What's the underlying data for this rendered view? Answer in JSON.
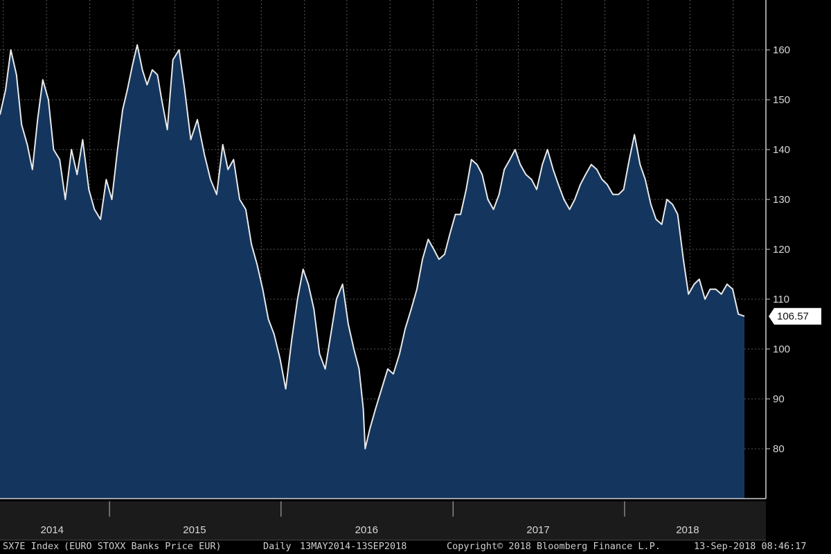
{
  "chart_data": {
    "type": "area",
    "ticker": "SX7E Index",
    "description": "(EURO STOXX Banks Price EUR)",
    "frequency": "Daily",
    "date_range": "13MAY2014-13SEP2018",
    "copyright": "Copyright© 2018 Bloomberg Finance L.P.",
    "timestamp": "13-Sep-2018 08:46:17",
    "last_value": 106.57,
    "last_value_label": "106.57",
    "ylim": [
      70,
      170
    ],
    "yticks": [
      80,
      90,
      100,
      110,
      120,
      130,
      140,
      150,
      160
    ],
    "grid": true,
    "x_start": "2014-05-13",
    "x_end": "2018-09-13",
    "year_labels": [
      {
        "label": "2014",
        "center": "2014-09-01"
      },
      {
        "label": "2015",
        "center": "2015-07-01"
      },
      {
        "label": "2016",
        "center": "2016-07-01"
      },
      {
        "label": "2017",
        "center": "2017-07-01"
      },
      {
        "label": "2018",
        "center": "2018-05-15"
      }
    ],
    "year_dividers": [
      "2015-01-01",
      "2016-01-01",
      "2017-01-01",
      "2018-01-01"
    ],
    "x_gridlines": [
      "2014-05-20",
      "2014-08-20",
      "2014-11-20",
      "2015-02-20",
      "2015-05-20",
      "2015-08-20",
      "2015-11-20",
      "2016-02-20",
      "2016-05-20",
      "2016-08-20",
      "2016-11-20",
      "2017-02-20",
      "2017-05-20",
      "2017-08-20",
      "2017-11-20",
      "2018-02-20",
      "2018-05-20",
      "2018-08-20"
    ],
    "x": [
      "2014-05-13",
      "2014-05-25",
      "2014-06-05",
      "2014-06-17",
      "2014-06-28",
      "2014-07-10",
      "2014-07-21",
      "2014-08-01",
      "2014-08-12",
      "2014-08-24",
      "2014-09-04",
      "2014-09-17",
      "2014-09-29",
      "2014-10-12",
      "2014-10-24",
      "2014-11-05",
      "2014-11-18",
      "2014-11-30",
      "2014-12-13",
      "2014-12-25",
      "2015-01-06",
      "2015-01-18",
      "2015-01-29",
      "2015-02-08",
      "2015-02-19",
      "2015-03-01",
      "2015-03-12",
      "2015-03-22",
      "2015-04-02",
      "2015-04-13",
      "2015-04-22",
      "2015-05-04",
      "2015-05-16",
      "2015-05-29",
      "2015-06-10",
      "2015-06-23",
      "2015-07-07",
      "2015-07-22",
      "2015-08-04",
      "2015-08-17",
      "2015-08-30",
      "2015-09-10",
      "2015-09-22",
      "2015-10-05",
      "2015-10-18",
      "2015-10-30",
      "2015-11-11",
      "2015-11-23",
      "2015-12-05",
      "2015-12-17",
      "2015-12-30",
      "2016-01-11",
      "2016-01-24",
      "2016-02-05",
      "2016-02-17",
      "2016-02-28",
      "2016-03-11",
      "2016-03-23",
      "2016-04-04",
      "2016-04-16",
      "2016-04-28",
      "2016-05-11",
      "2016-05-23",
      "2016-06-04",
      "2016-06-15",
      "2016-06-24",
      "2016-06-28",
      "2016-07-08",
      "2016-07-20",
      "2016-08-02",
      "2016-08-15",
      "2016-08-27",
      "2016-09-09",
      "2016-09-21",
      "2016-10-04",
      "2016-10-16",
      "2016-10-28",
      "2016-11-09",
      "2016-11-21",
      "2016-12-02",
      "2016-12-14",
      "2016-12-25",
      "2017-01-06",
      "2017-01-17",
      "2017-01-29",
      "2017-02-09",
      "2017-02-21",
      "2017-03-04",
      "2017-03-16",
      "2017-03-28",
      "2017-04-09",
      "2017-04-20",
      "2017-05-02",
      "2017-05-13",
      "2017-05-24",
      "2017-06-05",
      "2017-06-17",
      "2017-06-28",
      "2017-07-10",
      "2017-07-21",
      "2017-08-02",
      "2017-08-13",
      "2017-08-25",
      "2017-09-06",
      "2017-09-17",
      "2017-09-29",
      "2017-10-10",
      "2017-10-22",
      "2017-11-03",
      "2017-11-14",
      "2017-11-25",
      "2017-12-07",
      "2017-12-19",
      "2017-12-30",
      "2018-01-11",
      "2018-01-22",
      "2018-02-03",
      "2018-02-14",
      "2018-02-26",
      "2018-03-09",
      "2018-03-21",
      "2018-04-01",
      "2018-04-13",
      "2018-04-24",
      "2018-05-06",
      "2018-05-17",
      "2018-05-29",
      "2018-06-09",
      "2018-06-21",
      "2018-07-02",
      "2018-07-14",
      "2018-07-26",
      "2018-08-07",
      "2018-08-19",
      "2018-08-31",
      "2018-09-13"
    ],
    "values": [
      147,
      152,
      160,
      155,
      145,
      141,
      136,
      146,
      154,
      150,
      140,
      138,
      130,
      140,
      135,
      142,
      132,
      128,
      126,
      134,
      130,
      140,
      148,
      152,
      157,
      161,
      156,
      153,
      156,
      155,
      150,
      144,
      158,
      160,
      152,
      142,
      146,
      139,
      134,
      131,
      141,
      136,
      138,
      130,
      128,
      121,
      117,
      112,
      106,
      103,
      98,
      92,
      102,
      110,
      116,
      113,
      108,
      99,
      96,
      103,
      110,
      113,
      105,
      100,
      96,
      88,
      80,
      84,
      88,
      92,
      96,
      95,
      99,
      104,
      108,
      112,
      118,
      122,
      120,
      118,
      119,
      123,
      127,
      127,
      132,
      138,
      137,
      135,
      130,
      128,
      131,
      136,
      138,
      140,
      137,
      135,
      134,
      132,
      137,
      140,
      136,
      133,
      130,
      128,
      130,
      133,
      135,
      137,
      136,
      134,
      133,
      131,
      131,
      132,
      138,
      143,
      137,
      134,
      129,
      126,
      125,
      130,
      129,
      127,
      118,
      111,
      113,
      114,
      110,
      112,
      112,
      111,
      113,
      112,
      107,
      106.57
    ]
  }
}
